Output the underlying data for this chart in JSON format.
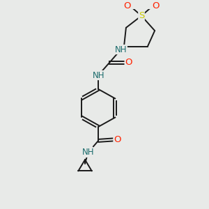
{
  "bg_color": "#e8eae8",
  "bond_color": "#1a1a1a",
  "N_color": "#1a6b6b",
  "O_color": "#ff2200",
  "S_color": "#cccc00",
  "font_size": 8.5,
  "figsize": [
    3.0,
    3.0
  ],
  "dpi": 100,
  "lw": 1.4,
  "xlim": [
    0,
    10
  ],
  "ylim": [
    0,
    10
  ]
}
